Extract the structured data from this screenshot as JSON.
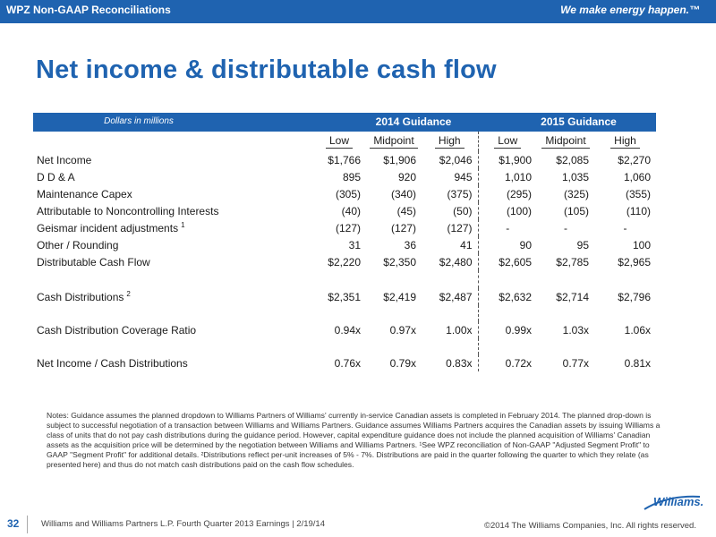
{
  "header": {
    "section": "WPZ Non-GAAP Reconciliations",
    "tagline": "We make energy happen.™"
  },
  "title": "Net income & distributable cash flow",
  "table": {
    "units": "Dollars in millions",
    "group_2014": "2014 Guidance",
    "group_2015": "2015 Guidance",
    "col_headers": [
      "Low",
      "Midpoint",
      "High",
      "Low",
      "Midpoint",
      "High"
    ],
    "rows": [
      {
        "label": "Net Income",
        "sup": "",
        "values": [
          "$1,766",
          "$1,906",
          "$2,046",
          "$1,900",
          "$2,085",
          "$2,270"
        ]
      },
      {
        "label": "D D & A",
        "sup": "",
        "values": [
          "895",
          "920",
          "945",
          "1,010",
          "1,035",
          "1,060"
        ]
      },
      {
        "label": "Maintenance Capex",
        "sup": "",
        "values": [
          "(305)",
          "(340)",
          "(375)",
          "(295)",
          "(325)",
          "(355)"
        ]
      },
      {
        "label": "Attributable to Noncontrolling Interests",
        "sup": "",
        "values": [
          "(40)",
          "(45)",
          "(50)",
          "(100)",
          "(105)",
          "(110)"
        ]
      },
      {
        "label": "Geismar incident adjustments",
        "sup": "1",
        "values": [
          "(127)",
          "(127)",
          "(127)",
          "-",
          "-",
          "-"
        ]
      },
      {
        "label": "Other / Rounding",
        "sup": "",
        "values": [
          "31",
          "36",
          "41",
          "90",
          "95",
          "100"
        ]
      },
      {
        "label": "Distributable Cash Flow",
        "sup": "",
        "values": [
          "$2,220",
          "$2,350",
          "$2,480",
          "$2,605",
          "$2,785",
          "$2,965"
        ]
      },
      {
        "label": "Cash Distributions",
        "sup": "2",
        "values": [
          "$2,351",
          "$2,419",
          "$2,487",
          "$2,632",
          "$2,714",
          "$2,796"
        ]
      },
      {
        "label": "Cash Distribution Coverage Ratio",
        "sup": "",
        "values": [
          "0.94x",
          "0.97x",
          "1.00x",
          "0.99x",
          "1.03x",
          "1.06x"
        ]
      },
      {
        "label": "Net Income / Cash Distributions",
        "sup": "",
        "values": [
          "0.76x",
          "0.79x",
          "0.83x",
          "0.72x",
          "0.77x",
          "0.81x"
        ]
      }
    ]
  },
  "notes": "Notes:  Guidance assumes the planned dropdown to Williams Partners of Williams' currently in-service Canadian assets is completed in February 2014. The planned drop-down is subject to successful negotiation of a transaction between Williams and Williams Partners. Guidance assumes Williams Partners acquires the Canadian assets by issuing Williams a class of units that do not pay cash distributions during the guidance period.  However, capital expenditure guidance does not include the planned acquisition of Williams' Canadian assets as the acquisition price will be determined by the negotiation between Williams and Williams Partners. ¹See WPZ reconciliation of Non-GAAP \"Adjusted Segment Profit\" to GAAP \"Segment Profit\" for additional details.  ²Distributions reflect per-unit increases of 5% - 7%.  Distributions are paid in the quarter following the quarter to which they relate (as presented here) and thus do not match cash distributions paid on the cash flow schedules.",
  "logo_text": "Williams.",
  "footer": {
    "page_number": "32",
    "left": "Williams and Williams Partners L.P.  Fourth Quarter 2013 Earnings  |  2/19/14",
    "right": "©2014 The Williams Companies, Inc.  All rights reserved."
  },
  "colors": {
    "brand_blue": "#1f63b0"
  }
}
